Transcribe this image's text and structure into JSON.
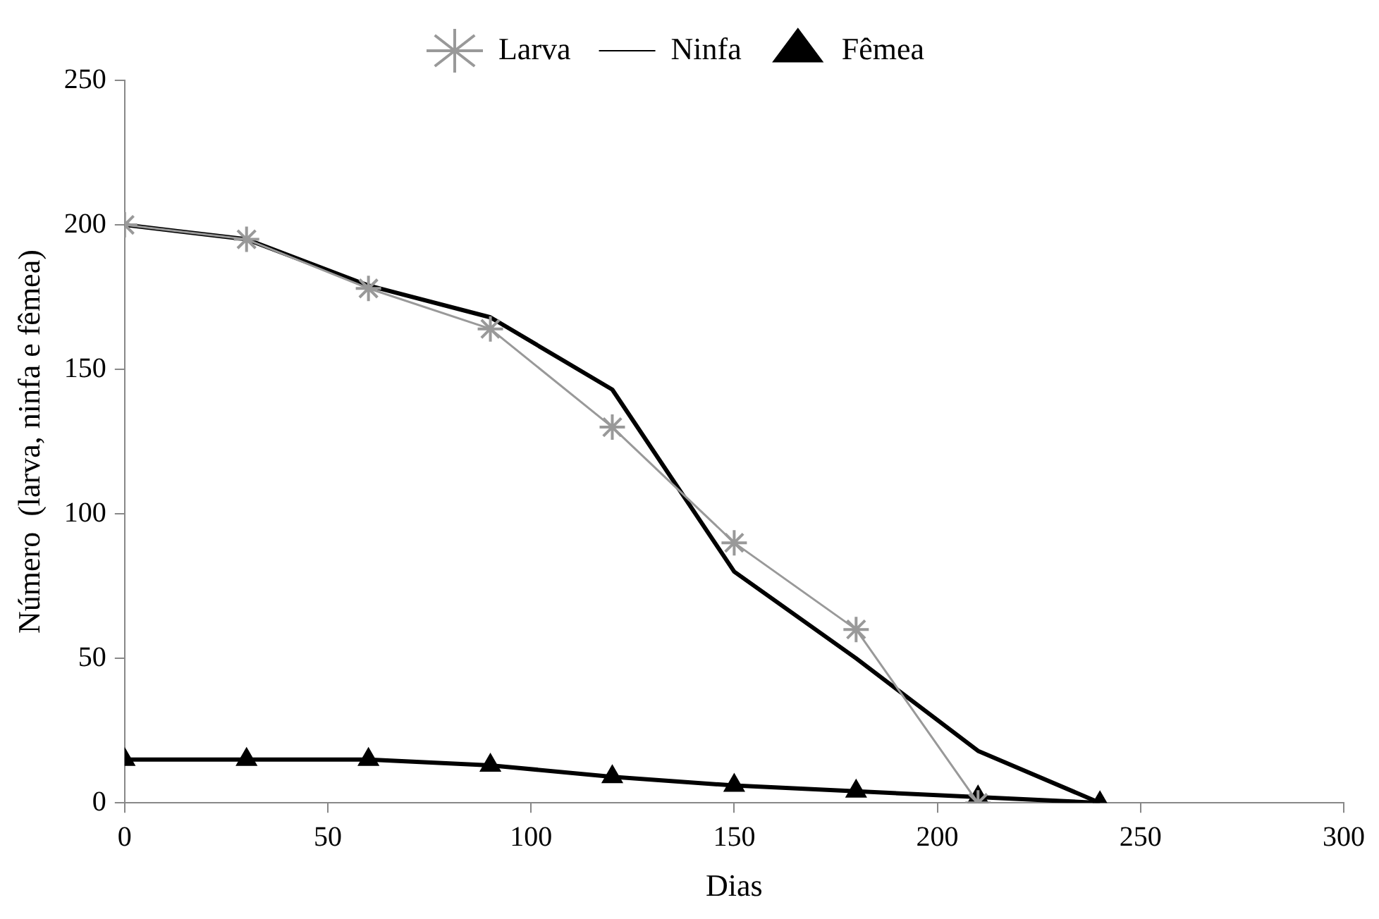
{
  "chart_data": {
    "type": "line",
    "xlabel": "Dias",
    "ylabel": "Número  (larva, ninfa e fêmea)",
    "x": [
      0,
      30,
      60,
      90,
      120,
      150,
      180,
      210,
      240
    ],
    "series": [
      {
        "name": "Larva",
        "color": "#999999",
        "marker": "cross",
        "values": [
          200,
          195,
          178,
          164,
          130,
          90,
          60,
          0,
          null
        ]
      },
      {
        "name": "Ninfa",
        "color": "#000000",
        "marker": "none",
        "values": [
          200,
          195,
          179,
          168,
          143,
          80,
          50,
          18,
          0
        ]
      },
      {
        "name": "Fêmea",
        "color": "#000000",
        "marker": "triangle",
        "values": [
          15,
          15,
          15,
          13,
          9,
          6,
          4,
          2,
          0
        ]
      }
    ],
    "xlim": [
      0,
      300
    ],
    "xticks": [
      0,
      50,
      100,
      150,
      200,
      250,
      300
    ],
    "ylim": [
      0,
      250
    ],
    "yticks": [
      0,
      50,
      100,
      150,
      200,
      250
    ],
    "grid": false,
    "legend": "top",
    "line_style": "solid"
  }
}
